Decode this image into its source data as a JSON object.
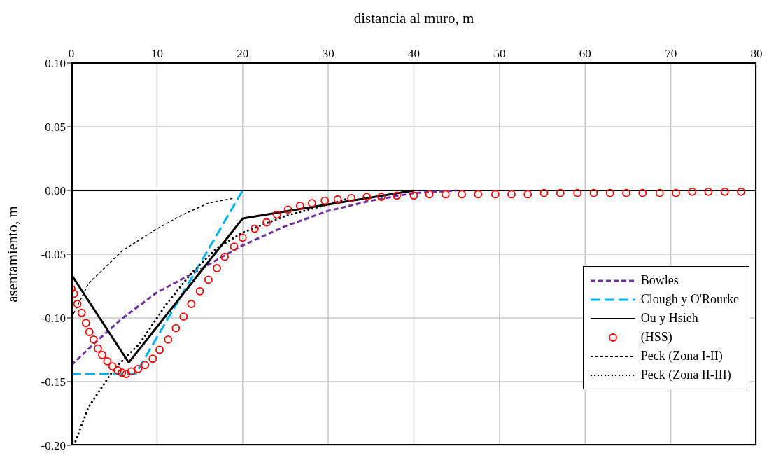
{
  "chart_data": {
    "type": "line",
    "xlabel": "distancia al muro, m",
    "ylabel": "asentamiento, m",
    "xlim": [
      0,
      80
    ],
    "xticks": [
      0,
      10,
      20,
      30,
      40,
      50,
      60,
      70,
      80
    ],
    "ylim": [
      -0.2,
      0.1
    ],
    "yticks": [
      {
        "value": -0.2,
        "label": "-0.20"
      },
      {
        "value": -0.15,
        "label": "-0.15"
      },
      {
        "value": -0.1,
        "label": "-0.10"
      },
      {
        "value": -0.05,
        "label": "-0.05"
      },
      {
        "value": 0,
        "label": "0.00"
      },
      {
        "value": 0.05,
        "label": "0.05"
      },
      {
        "value": 0.1,
        "label": "0.10"
      }
    ],
    "grid": true,
    "legend": "bottom right",
    "ref_lines": [
      {
        "axis": "y",
        "value": 0,
        "color": "#000000",
        "line_style": "solid"
      }
    ],
    "series": [
      {
        "name": "Bowles",
        "type": "line",
        "line_style": "dashed",
        "color": "#7030a0",
        "x": [
          0,
          3,
          6,
          10,
          15,
          20,
          25,
          30,
          35,
          40,
          45
        ],
        "values": [
          -0.137,
          -0.118,
          -0.1,
          -0.08,
          -0.062,
          -0.043,
          -0.028,
          -0.016,
          -0.008,
          -0.002,
          0
        ]
      },
      {
        "name": "Clough y O'Rourke",
        "type": "line",
        "line_style": "dashed",
        "color": "#00b0f0",
        "x": [
          0,
          7.5,
          20
        ],
        "values": [
          -0.144,
          -0.144,
          0
        ]
      },
      {
        "name": "Ou y Hsieh",
        "type": "line",
        "line_style": "solid",
        "color": "#000000",
        "x": [
          0,
          6.7,
          20,
          40
        ],
        "values": [
          -0.066,
          -0.135,
          -0.022,
          0
        ]
      },
      {
        "name": "(HSS)",
        "type": "scatter",
        "marker": "circle",
        "color": "#ff0000",
        "x": [
          0,
          0.3,
          0.7,
          1.2,
          1.7,
          2.1,
          2.6,
          3.1,
          3.6,
          4.2,
          4.8,
          5.4,
          5.9,
          6.4,
          7.0,
          7.8,
          8.6,
          9.5,
          10.3,
          11.3,
          12.2,
          13.1,
          14.0,
          15.0,
          16.0,
          17.0,
          17.9,
          19.0,
          20.0,
          21.4,
          22.8,
          24.0,
          25.3,
          26.7,
          28.1,
          29.6,
          31.1,
          32.7,
          34.5,
          36.2,
          38.0,
          40.0,
          41.8,
          43.7,
          45.6,
          47.5,
          49.5,
          51.4,
          53.3,
          55.2,
          57.1,
          59.1,
          61.0,
          62.9,
          64.8,
          66.7,
          68.7,
          70.6,
          72.5,
          74.4,
          76.3,
          78.2
        ],
        "values": [
          -0.077,
          -0.081,
          -0.089,
          -0.096,
          -0.104,
          -0.111,
          -0.117,
          -0.124,
          -0.129,
          -0.134,
          -0.138,
          -0.141,
          -0.143,
          -0.144,
          -0.142,
          -0.14,
          -0.137,
          -0.132,
          -0.125,
          -0.117,
          -0.108,
          -0.099,
          -0.089,
          -0.079,
          -0.07,
          -0.061,
          -0.052,
          -0.044,
          -0.037,
          -0.03,
          -0.025,
          -0.019,
          -0.015,
          -0.012,
          -0.01,
          -0.008,
          -0.007,
          -0.006,
          -0.005,
          -0.005,
          -0.004,
          -0.004,
          -0.003,
          -0.003,
          -0.003,
          -0.003,
          -0.003,
          -0.003,
          -0.003,
          -0.002,
          -0.002,
          -0.002,
          -0.002,
          -0.002,
          -0.002,
          -0.002,
          -0.002,
          -0.002,
          -0.001,
          -0.001,
          -0.001,
          -0.001
        ]
      },
      {
        "name": "Peck (Zona I-II)",
        "type": "line",
        "line_style": "dashed",
        "color": "#000000",
        "x": [
          0,
          2,
          6,
          10,
          13,
          16,
          19
        ],
        "values": [
          -0.1,
          -0.073,
          -0.047,
          -0.03,
          -0.019,
          -0.01,
          -0.006
        ]
      },
      {
        "name": "Peck (Zona II-III)",
        "type": "line",
        "line_style": "dotted",
        "color": "#000000",
        "x": [
          0.3,
          2,
          5,
          8,
          11,
          14,
          17,
          20,
          25,
          30,
          32
        ],
        "values": [
          -0.2,
          -0.17,
          -0.14,
          -0.12,
          -0.09,
          -0.065,
          -0.045,
          -0.033,
          -0.02,
          -0.011,
          -0.007
        ]
      }
    ]
  }
}
